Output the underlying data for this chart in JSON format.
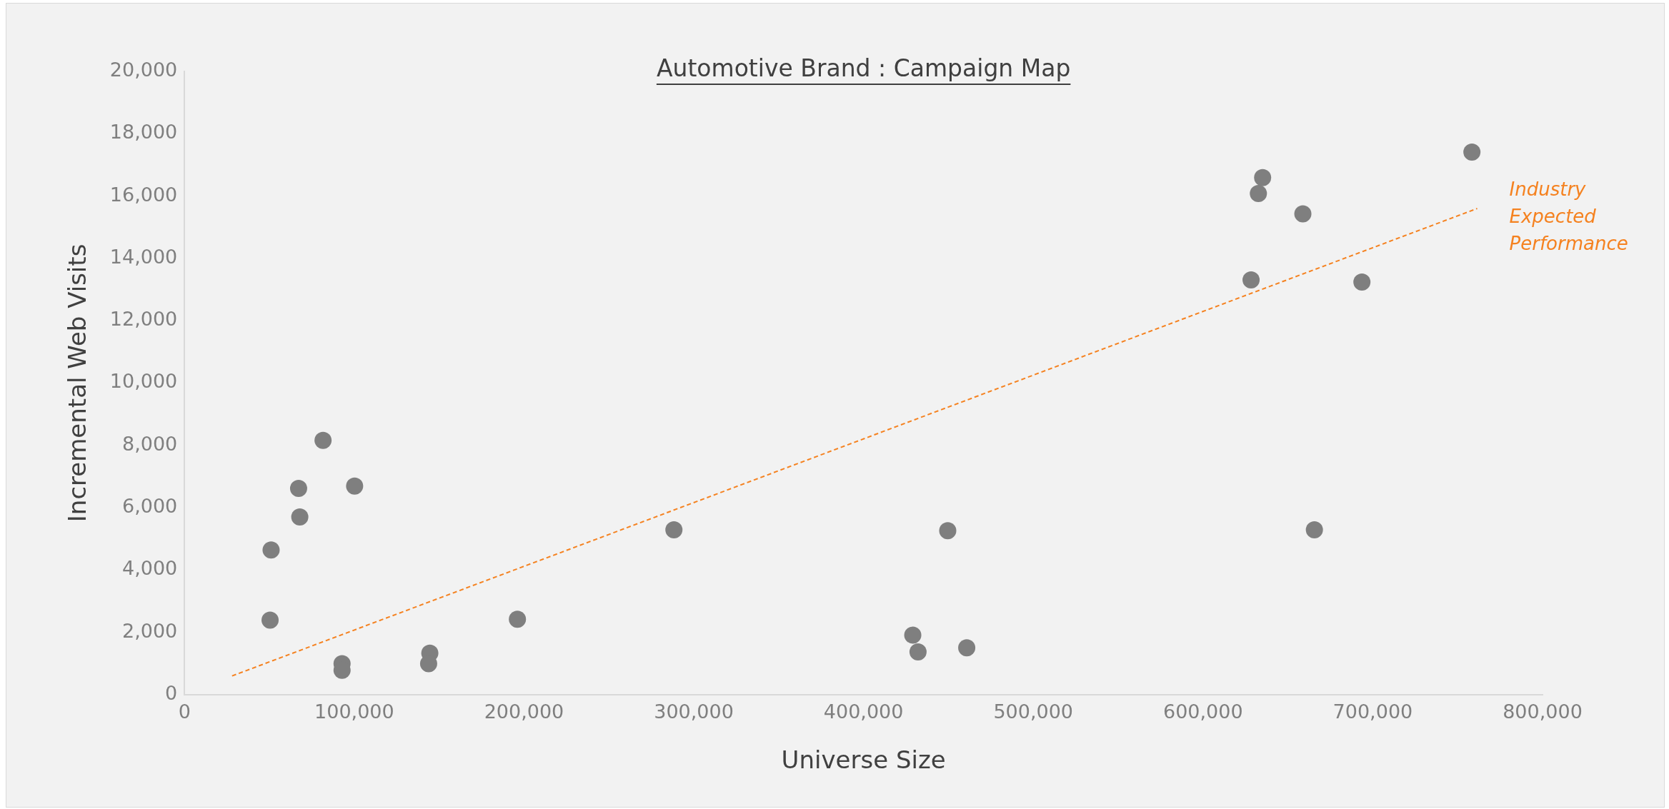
{
  "chart_data": {
    "type": "scatter",
    "title": "Automotive Brand : Campaign Map",
    "xlabel": "Universe Size",
    "ylabel": "Incremental Web Visits",
    "xlim": [
      0,
      800000
    ],
    "xticks": [
      {
        "value": 0,
        "label": "0"
      },
      {
        "value": 100000,
        "label": "100,000"
      },
      {
        "value": 200000,
        "label": "200,000"
      },
      {
        "value": 300000,
        "label": "300,000"
      },
      {
        "value": 400000,
        "label": "400,000"
      },
      {
        "value": 500000,
        "label": "500,000"
      },
      {
        "value": 600000,
        "label": "600,000"
      },
      {
        "value": 700000,
        "label": "700,000"
      },
      {
        "value": 800000,
        "label": "800,000"
      }
    ],
    "ylim": [
      0,
      20000
    ],
    "yticks": [
      {
        "value": 0,
        "label": "0"
      },
      {
        "value": 2000,
        "label": "2,000"
      },
      {
        "value": 4000,
        "label": "4,000"
      },
      {
        "value": 6000,
        "label": "6,000"
      },
      {
        "value": 8000,
        "label": "8,000"
      },
      {
        "value": 10000,
        "label": "10,000"
      },
      {
        "value": 12000,
        "label": "12,000"
      },
      {
        "value": 14000,
        "label": "14,000"
      },
      {
        "value": 16000,
        "label": "16,000"
      },
      {
        "value": 18000,
        "label": "18,000"
      },
      {
        "value": 20000,
        "label": "20,000"
      }
    ],
    "grid": false,
    "legend": false,
    "marker": "circle",
    "series": [
      {
        "color": "#7f7f7f",
        "x": [
          51000,
          50400,
          67200,
          67900,
          81600,
          100200,
          92800,
          92800,
          144500,
          143800,
          196100,
          288300,
          429000,
          432100,
          449600,
          460800,
          632600,
          635100,
          658800,
          628300,
          693600,
          665600,
          758400
        ],
        "values": [
          4640,
          2390,
          6620,
          5700,
          8160,
          6690,
          990,
          780,
          1330,
          990,
          2420,
          5290,
          1910,
          1370,
          5260,
          1500,
          16080,
          16590,
          15430,
          13310,
          13240,
          5290,
          17410
        ]
      },
      {
        "type": "line",
        "color": "#f58220",
        "line_style": "dashed",
        "marker": "none",
        "x": [
          28000,
          761500
        ],
        "values": [
          600,
          15600
        ]
      }
    ],
    "annotations": [
      {
        "text": "Industry Expected Performance",
        "x": 761500,
        "y": 15600
      }
    ]
  }
}
